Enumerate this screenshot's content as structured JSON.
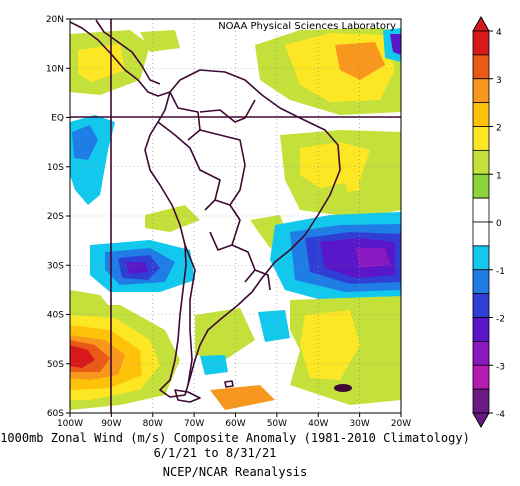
{
  "map": {
    "credit": "NOAA Physical Sciences Laboratory",
    "lat_labels": [
      "20N",
      "10N",
      "EQ",
      "10S",
      "20S",
      "30S",
      "40S",
      "50S",
      "60S"
    ],
    "lat_values": [
      20,
      10,
      0,
      -10,
      -20,
      -30,
      -40,
      -50,
      -60
    ],
    "lon_labels": [
      "100W",
      "90W",
      "80W",
      "70W",
      "60W",
      "50W",
      "40W",
      "30W",
      "20W"
    ],
    "lon_values": [
      -100,
      -90,
      -80,
      -70,
      -60,
      -50,
      -40,
      -30,
      -20
    ],
    "lon_range": [
      -100,
      -20
    ],
    "lat_range": [
      -60,
      20
    ],
    "reference_lines": {
      "longitude": -90,
      "latitude": 0
    },
    "grid": "dotted"
  },
  "colorbar": {
    "labels": [
      "4",
      "3",
      "2",
      "1",
      "0",
      "-1",
      "-2",
      "-3",
      "-4"
    ],
    "levels": [
      4,
      3,
      2,
      1,
      0,
      -1,
      -2,
      -3,
      -4
    ],
    "colors": [
      "#d7191c",
      "#ea5a17",
      "#f7971e",
      "#fec20b",
      "#fde724",
      "#c4e03a",
      "#8cd33a",
      "#ffffff",
      "#ffffff",
      "#12c8ec",
      "#1f7ee6",
      "#2f3fd6",
      "#5a17c9",
      "#8a18c0",
      "#b61bb2",
      "#6a1a84"
    ]
  },
  "caption": {
    "line1": "1000mb Zonal Wind (m/s) Composite Anomaly (1981-2010 Climatology)",
    "line2": "6/1/21 to 8/31/21",
    "line3": "NCEP/NCAR Reanalysis"
  },
  "colors": {
    "strong_neg": "#5a17c9",
    "neg": "#2f3fd6",
    "weak_neg": "#12c8ec",
    "weak_pos": "#c4e03a",
    "pos": "#fde724",
    "strong_pos": "#f7971e",
    "very_strong_pos": "#d7191c",
    "coast": "#3d0a33"
  }
}
